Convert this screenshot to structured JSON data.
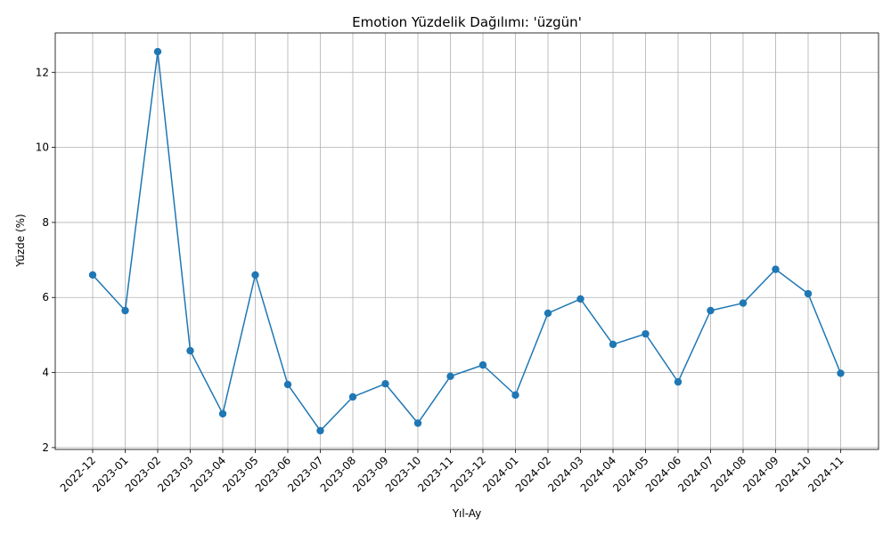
{
  "chart_data": {
    "type": "line",
    "title": "Emotion Yüzdelik Dağılımı: 'üzgün'",
    "xlabel": "Yıl-Ay",
    "ylabel": "Yüzde (%)",
    "categories": [
      "2022-12",
      "2023-01",
      "2023-02",
      "2023-03",
      "2023-04",
      "2023-05",
      "2023-06",
      "2023-07",
      "2023-08",
      "2023-09",
      "2023-10",
      "2023-11",
      "2023-12",
      "2024-01",
      "2024-02",
      "2024-03",
      "2024-04",
      "2024-05",
      "2024-06",
      "2024-07",
      "2024-08",
      "2024-09",
      "2024-10",
      "2024-11"
    ],
    "values": [
      6.6,
      5.65,
      12.55,
      4.58,
      2.9,
      6.6,
      3.68,
      2.45,
      3.35,
      3.7,
      2.65,
      3.9,
      4.2,
      3.4,
      5.58,
      5.96,
      4.75,
      5.03,
      3.75,
      5.65,
      5.85,
      6.75,
      6.1,
      3.98
    ],
    "yticks": [
      2,
      4,
      6,
      8,
      10,
      12
    ],
    "ylim": [
      1.95,
      13.05
    ],
    "grid": true,
    "color": "#1f77b4"
  }
}
